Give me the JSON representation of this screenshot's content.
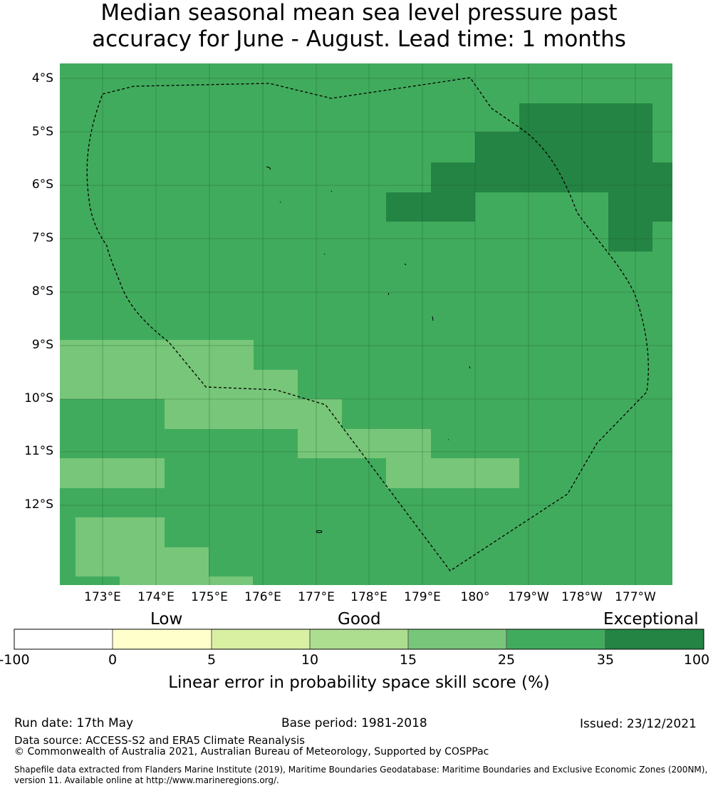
{
  "title": {
    "line1": "Median seasonal mean sea level pressure past",
    "line2": "accuracy for June - August. Lead time: 1 months"
  },
  "map": {
    "lat_labels": [
      "4°S",
      "5°S",
      "6°S",
      "7°S",
      "8°S",
      "9°S",
      "10°S",
      "11°S",
      "12°S"
    ],
    "lon_labels": [
      "173°E",
      "174°E",
      "175°E",
      "176°E",
      "177°E",
      "178°E",
      "179°E",
      "180°",
      "179°W",
      "178°W",
      "177°W"
    ],
    "base_category_color": "#41ab5d"
  },
  "colorbar": {
    "category_labels": [
      "Low",
      "Good",
      "Exceptional"
    ],
    "ticks": [
      "-100",
      "0",
      "5",
      "10",
      "15",
      "25",
      "35",
      "100"
    ],
    "colors": [
      "#ffffff",
      "#ffffcc",
      "#d9f0a3",
      "#addd8e",
      "#78c679",
      "#41ab5d",
      "#238443"
    ],
    "label": "Linear error in probability space skill score (%)"
  },
  "footer": {
    "run_date": "Run date: 17th May",
    "base_period": "Base period: 1981-2018",
    "issued": "Issued: 23/12/2021",
    "data_source": "Data source: ACCESS-S2 and ERA5 Climate Reanalysis",
    "copyright": "© Commonwealth of Australia 2021, Australian Bureau of Meteorology, Supported by COSPPac",
    "shapefile_line1": "Shapefile data extracted from Flanders Marine Institute (2019), Maritime Boundaries Geodatabase: Maritime Boundaries and Exclusive Economic Zones (200NM),",
    "shapefile_line2": "version 11. Available online at http://www.marineregions.org/."
  }
}
